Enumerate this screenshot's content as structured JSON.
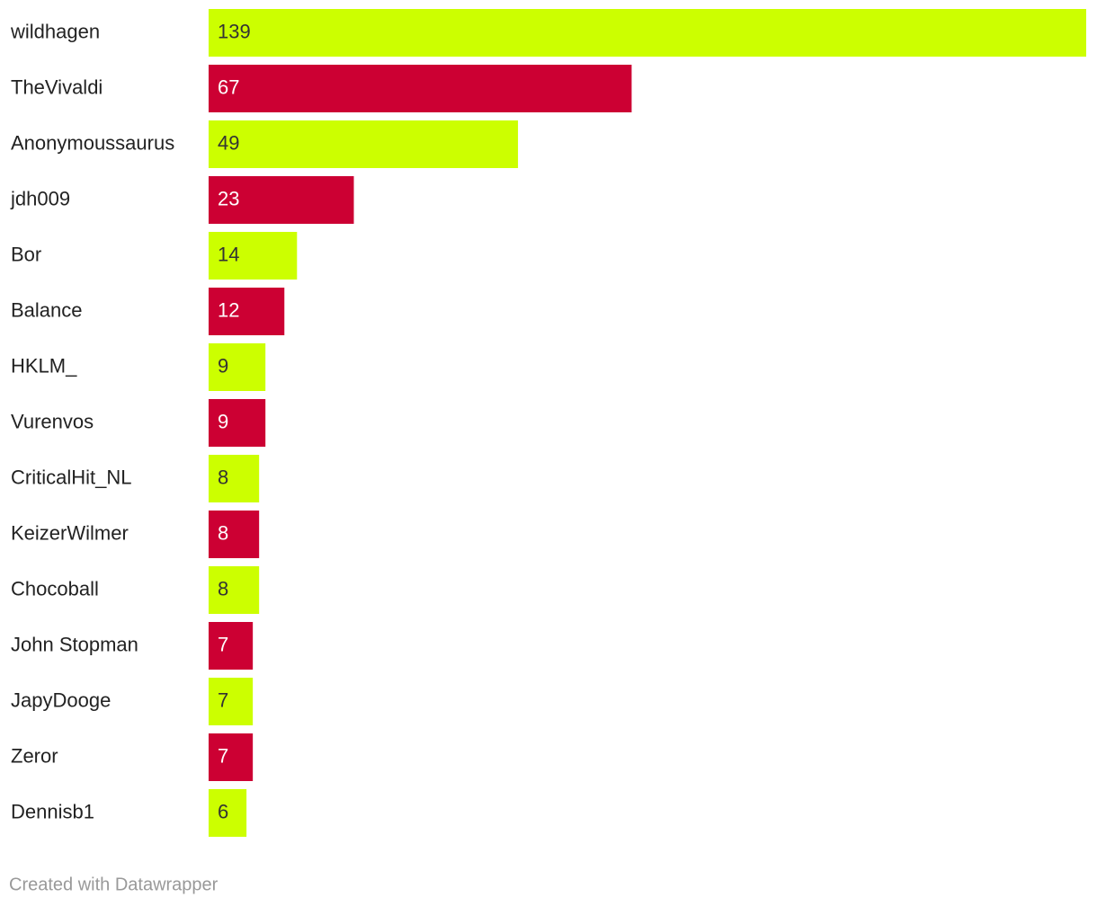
{
  "chart_data": {
    "type": "bar",
    "orientation": "horizontal",
    "categories": [
      "wildhagen",
      "TheVivaldi",
      "Anonymoussaurus",
      "jdh009",
      "Bor",
      "Balance",
      "HKLM_",
      "Vurenvos",
      "CriticalHit_NL",
      "KeizerWilmer",
      "Chocoball",
      "John Stopman",
      "JapyDooge",
      "Zeror",
      "Dennisb1"
    ],
    "values": [
      139,
      67,
      49,
      23,
      14,
      12,
      9,
      9,
      8,
      8,
      8,
      7,
      7,
      7,
      6
    ],
    "colors": [
      "#ccff00",
      "#cc0033",
      "#ccff00",
      "#cc0033",
      "#ccff00",
      "#cc0033",
      "#ccff00",
      "#cc0033",
      "#ccff00",
      "#cc0033",
      "#ccff00",
      "#cc0033",
      "#ccff00",
      "#cc0033",
      "#ccff00"
    ],
    "xlim": [
      0,
      139
    ],
    "footer": "Created with Datawrapper"
  }
}
